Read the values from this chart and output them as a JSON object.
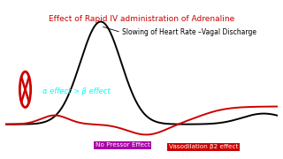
{
  "title": "Effect of Rapid IV administration of Adrenaline",
  "title_color": "#cc0000",
  "title_fontsize": 6.5,
  "annotation_vagal": "Slowing of Heart Rate –Vagal Discharge",
  "annotation_vagal_color": "black",
  "annotation_vagal_fontsize": 5.5,
  "annotation_alpha": "α effect > β effect",
  "annotation_alpha_color": "cyan",
  "annotation_alpha_fontsize": 6.0,
  "label_no_pressor": "No Pressor Effect",
  "label_no_pressor_color": "white",
  "label_no_pressor_bg": "#aa00aa",
  "label_vasodilation": "Vasodilation β2 effect",
  "label_vasodilation_color": "white",
  "label_vasodilation_bg": "#cc0000",
  "bg_color": "#ffffff",
  "black_line_color": "black",
  "red_line_color": "#cc0000",
  "xlim": [
    0,
    10
  ],
  "ylim": [
    -0.25,
    1.3
  ]
}
